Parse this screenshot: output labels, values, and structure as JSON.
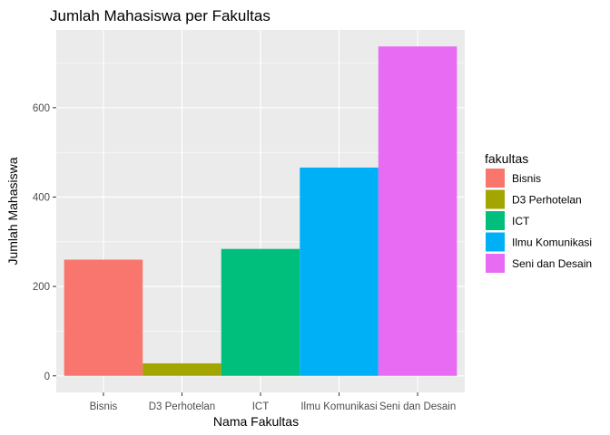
{
  "chart_data": {
    "type": "bar",
    "title": "Jumlah Mahasiswa per Fakultas",
    "xlabel": "Nama Fakultas",
    "ylabel": "Jumlah Mahasiswa",
    "categories": [
      "Bisnis",
      "D3 Perhotelan",
      "ICT",
      "Ilmu Komunikasi",
      "Seni dan Desain"
    ],
    "values": [
      260,
      28,
      284,
      466,
      737
    ],
    "colors": [
      "#F8766D",
      "#A3A500",
      "#00BF7D",
      "#00B0F6",
      "#E76BF3"
    ],
    "ylim": [
      -37,
      774
    ],
    "yticks": [
      0,
      200,
      400,
      600
    ],
    "grid": true,
    "legend": {
      "title": "fakultas",
      "position": "right",
      "entries": [
        "Bisnis",
        "D3 Perhotelan",
        "ICT",
        "Ilmu Komunikasi",
        "Seni dan Desain"
      ]
    },
    "panel_background": "#EBEBEB"
  }
}
